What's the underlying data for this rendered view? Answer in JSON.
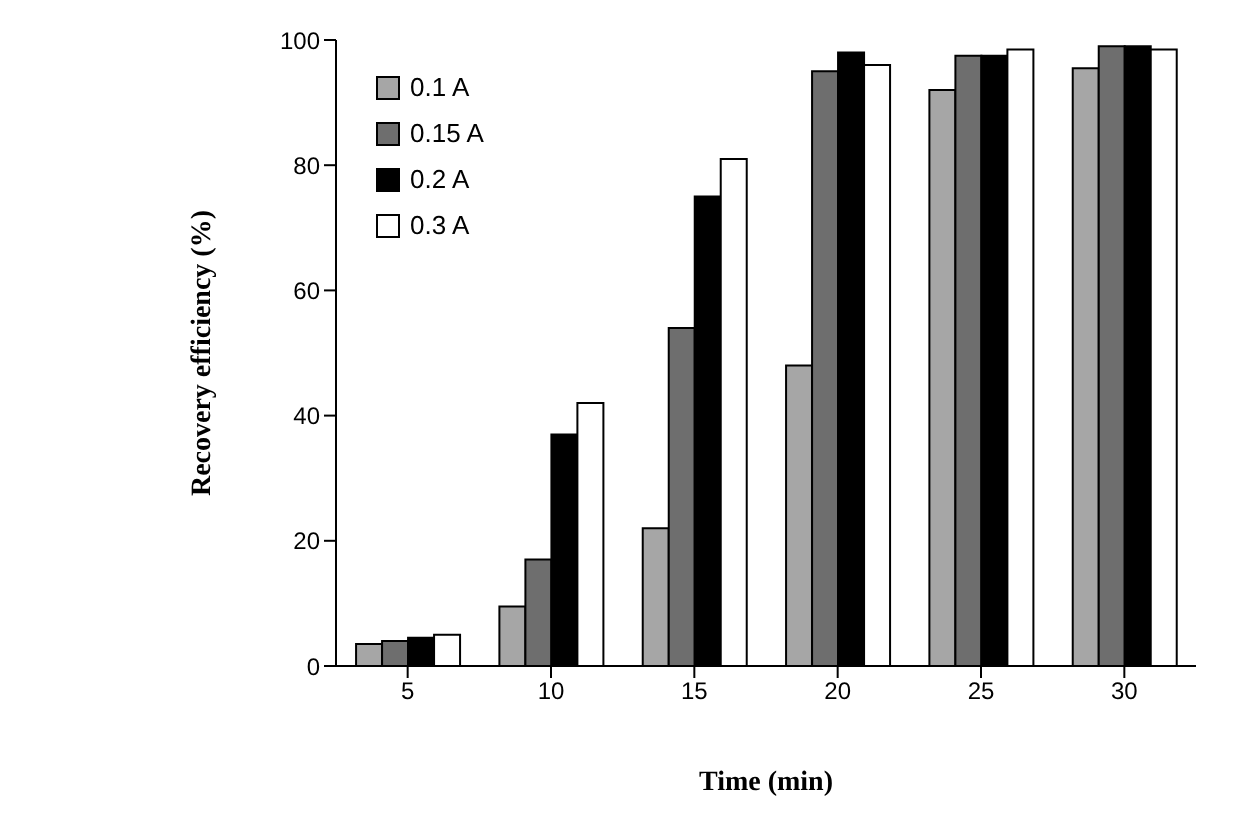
{
  "chart_data": {
    "type": "bar",
    "xlabel": "Time (min)",
    "ylabel": "Recovery efficiency (%)",
    "categories": [
      "5",
      "10",
      "15",
      "20",
      "25",
      "30"
    ],
    "series": [
      {
        "name": "0.1 A",
        "color": "#a6a6a6",
        "values": [
          3.5,
          9.5,
          22,
          48,
          92,
          95.5
        ]
      },
      {
        "name": "0.15 A",
        "color": "#6e6e6e",
        "values": [
          4,
          17,
          54,
          95,
          97.5,
          99
        ]
      },
      {
        "name": "0.2 A",
        "color": "#000000",
        "values": [
          4.5,
          37,
          75,
          98,
          97.5,
          99
        ]
      },
      {
        "name": "0.3 A",
        "color": "#ffffff",
        "values": [
          5,
          42,
          81,
          96,
          98.5,
          98.5
        ]
      }
    ],
    "ylim": [
      0,
      100
    ],
    "yticks": [
      0,
      20,
      40,
      60,
      80,
      100
    ],
    "grid": false,
    "legend": "top left"
  }
}
